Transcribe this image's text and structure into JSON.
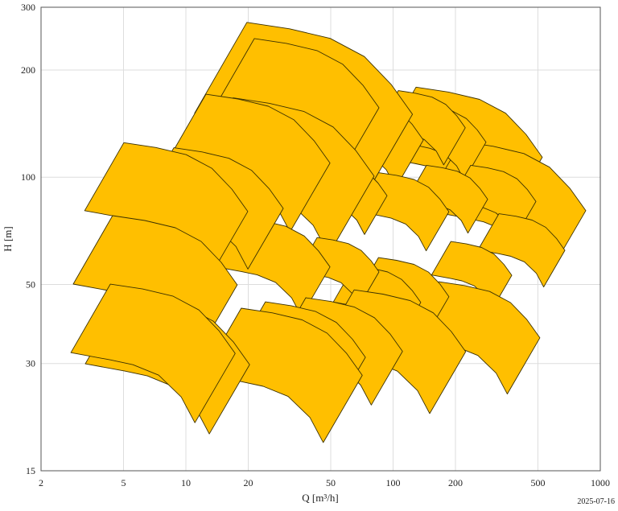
{
  "chart_data": {
    "type": "area",
    "xlabel": "Q [m³/h]",
    "ylabel": "H [m]",
    "x_scale": "log",
    "y_scale": "log",
    "xlim": [
      2,
      1000
    ],
    "ylim": [
      15,
      300
    ],
    "x_ticks": [
      2,
      5,
      10,
      20,
      50,
      100,
      200,
      500,
      1000
    ],
    "x_tick_labels": [
      "2",
      "5",
      "10",
      "20",
      "50",
      "100",
      "200",
      "500",
      "1000"
    ],
    "y_ticks": [
      15,
      30,
      50,
      100,
      200,
      300
    ],
    "y_tick_labels": [
      "15",
      "30",
      "50",
      "100",
      "200",
      "300"
    ],
    "grid": true,
    "fill_color": "#FFBF00",
    "edge_color": "#3a3000",
    "ranges": [
      {
        "q_min": 19.7,
        "h_max": 272,
        "q_max": 124
      },
      {
        "q_min": 21.4,
        "h_max": 245,
        "q_max": 85.5
      },
      {
        "q_min": 129,
        "h_max": 179,
        "q_max": 525
      },
      {
        "q_min": 213,
        "h_max": 126,
        "q_max": 851
      },
      {
        "q_min": 145,
        "h_max": 170,
        "q_max": 291
      },
      {
        "q_min": 106,
        "h_max": 175,
        "q_max": 223
      },
      {
        "q_min": 132,
        "h_max": 160,
        "q_max": 281
      },
      {
        "q_min": 54,
        "h_max": 173,
        "q_max": 140
      },
      {
        "q_min": 16.9,
        "h_max": 167,
        "q_max": 81
      },
      {
        "q_min": 12.5,
        "h_max": 171,
        "q_max": 49.6
      },
      {
        "q_min": 237,
        "h_max": 108,
        "q_max": 489
      },
      {
        "q_min": 145,
        "h_max": 108,
        "q_max": 286
      },
      {
        "q_min": 85,
        "h_max": 103,
        "q_max": 186
      },
      {
        "q_min": 43,
        "h_max": 114,
        "q_max": 93.5
      },
      {
        "q_min": 8.75,
        "h_max": 121,
        "q_max": 29.5
      },
      {
        "q_min": 5.02,
        "h_max": 125,
        "q_max": 19.9
      },
      {
        "q_min": 324,
        "h_max": 79,
        "q_max": 675
      },
      {
        "q_min": 190,
        "h_max": 66,
        "q_max": 374
      },
      {
        "q_min": 85,
        "h_max": 59.5,
        "q_max": 186
      },
      {
        "q_min": 65,
        "h_max": 56.5,
        "q_max": 136
      },
      {
        "q_min": 43,
        "h_max": 67.7,
        "q_max": 85.5
      },
      {
        "q_min": 18.5,
        "h_max": 77,
        "q_max": 49.6
      },
      {
        "q_min": 4.43,
        "h_max": 78,
        "q_max": 17.7
      },
      {
        "q_min": 166,
        "h_max": 50.9,
        "q_max": 511
      },
      {
        "q_min": 64.9,
        "h_max": 48.3,
        "q_max": 224
      },
      {
        "q_min": 37.9,
        "h_max": 45.9,
        "q_max": 111
      },
      {
        "q_min": 24.2,
        "h_max": 44.7,
        "q_max": 73.5
      },
      {
        "q_min": 18.5,
        "h_max": 42.9,
        "q_max": 71
      },
      {
        "q_min": 4.32,
        "h_max": 50.1,
        "q_max": 17.3
      },
      {
        "q_min": 5.07,
        "h_max": 46.6,
        "q_max": 20.3
      }
    ]
  },
  "footer": {
    "date": "2025-07-16"
  }
}
